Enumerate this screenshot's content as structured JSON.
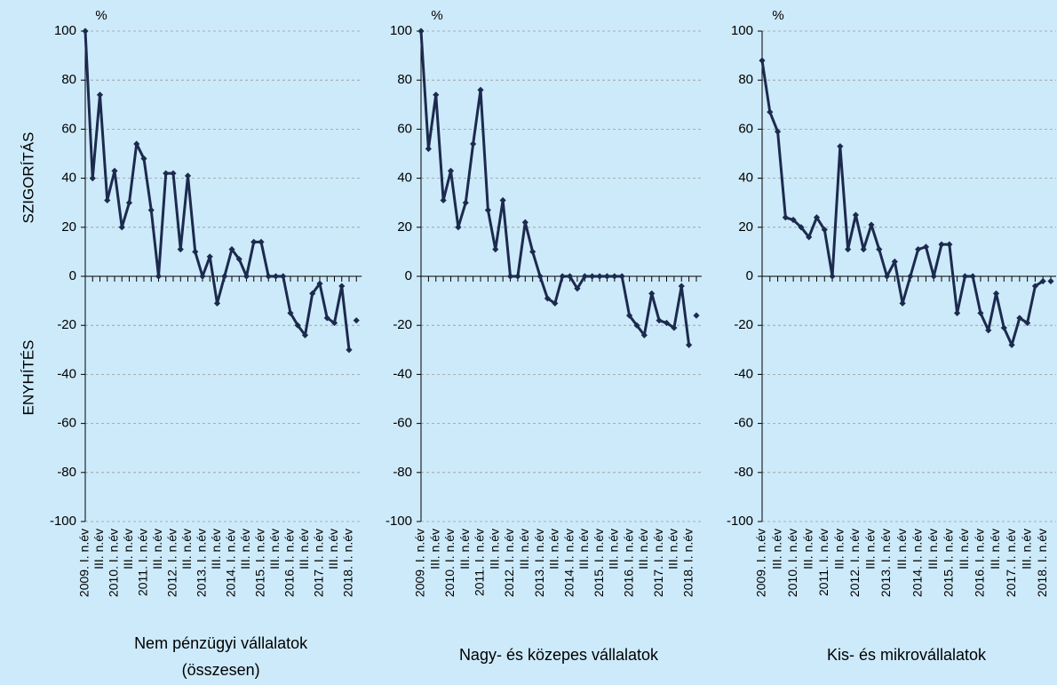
{
  "chart_data": [
    {
      "type": "line",
      "title": [
        "Nem pénzügyi vállalatok",
        "(összesen)"
      ],
      "unit": "%",
      "ylabel_upper": "SZIGORÍTÁS",
      "ylabel_lower": "ENYHÍTÉS",
      "categories": [
        "2009. I. n.év",
        null,
        "III. n.év",
        null,
        "2010. I. n.év",
        null,
        "III. n.év",
        null,
        "2011. I. n.év",
        null,
        "III. n.év",
        null,
        "2012. I. n.év",
        null,
        "III. n.év",
        null,
        "2013. I. n.év",
        null,
        "III. n.év",
        null,
        "2014. I. n.év",
        null,
        "III. n.év",
        null,
        "2015. I. n.év",
        null,
        "III. n.év",
        null,
        "2016. I. n.év",
        null,
        "III. n.év",
        null,
        "2017. I. n.év",
        null,
        "III. n.év",
        null,
        "2018. I. n.év",
        null
      ],
      "series": [
        {
          "color": "#1c2a4e",
          "values": [
            100,
            40,
            74,
            31,
            43,
            20,
            30,
            54,
            48,
            27,
            0,
            42,
            42,
            11,
            41,
            10,
            0,
            8,
            -11,
            0,
            11,
            7,
            0,
            14,
            14,
            0,
            0,
            0,
            -15,
            -20,
            -24,
            -7,
            -3,
            -17,
            -19,
            -4,
            -30,
            null
          ]
        },
        {
          "color": "#1c2a4e",
          "values": [
            null,
            null,
            null,
            null,
            null,
            null,
            null,
            null,
            null,
            null,
            null,
            null,
            null,
            null,
            null,
            null,
            null,
            null,
            null,
            null,
            null,
            null,
            null,
            null,
            null,
            null,
            null,
            null,
            null,
            null,
            null,
            null,
            null,
            null,
            null,
            null,
            null,
            -18
          ]
        }
      ],
      "ylim": [
        -100,
        100
      ],
      "yticks": [
        -100,
        -80,
        -60,
        -40,
        -20,
        0,
        20,
        40,
        60,
        80,
        100
      ],
      "grid": true
    },
    {
      "type": "line",
      "title": [
        "Nagy- és közepes vállalatok"
      ],
      "unit": "%",
      "categories": [
        "2009. I. n.év",
        null,
        "III. n.év",
        null,
        "2010. I. n.év",
        null,
        "III. n.év",
        null,
        "2011. I. n.év",
        null,
        "III. n.év",
        null,
        "2012. I. n.év",
        null,
        "III. n.év",
        null,
        "2013. I. n.év",
        null,
        "III. n.év",
        null,
        "2014. I. n.év",
        null,
        "III. n.év",
        null,
        "2015. I. n.év",
        null,
        "III. n.év",
        null,
        "2016. I. n.év",
        null,
        "III. n.év",
        null,
        "2017. I. n.év",
        null,
        "III. n.év",
        null,
        "2018. I. n.év",
        null
      ],
      "series": [
        {
          "color": "#1c2a4e",
          "values": [
            100,
            52,
            74,
            31,
            43,
            20,
            30,
            54,
            76,
            27,
            11,
            31,
            0,
            0,
            22,
            10,
            0,
            -9,
            -11,
            0,
            0,
            -5,
            0,
            0,
            0,
            0,
            0,
            0,
            -16,
            -20,
            -24,
            -7,
            -18,
            -19,
            -21,
            -4,
            -28,
            null
          ]
        },
        {
          "color": "#1c2a4e",
          "values": [
            null,
            null,
            null,
            null,
            null,
            null,
            null,
            null,
            null,
            null,
            null,
            null,
            null,
            null,
            null,
            null,
            null,
            null,
            null,
            null,
            null,
            null,
            null,
            null,
            null,
            null,
            null,
            null,
            null,
            null,
            null,
            null,
            null,
            null,
            null,
            null,
            null,
            -16
          ]
        }
      ],
      "ylim": [
        -100,
        100
      ],
      "yticks": [
        -100,
        -80,
        -60,
        -40,
        -20,
        0,
        20,
        40,
        60,
        80,
        100
      ],
      "grid": true
    },
    {
      "type": "line",
      "title": [
        "Kis- és mikrovállalatok"
      ],
      "unit": "%",
      "categories": [
        "2009. I. n.év",
        null,
        "III. n.év",
        null,
        "2010. I. n.év",
        null,
        "III. n.év",
        null,
        "2011. I. n.év",
        null,
        "III. n.év",
        null,
        "2012. I. n.év",
        null,
        "III. n.év",
        null,
        "2013. I. n.év",
        null,
        "III. n.év",
        null,
        "2014. I. n.év",
        null,
        "III. n.év",
        null,
        "2015. I. n.év",
        null,
        "III. n.év",
        null,
        "2016. I. n.év",
        null,
        "III. n.év",
        null,
        "2017. I. n.év",
        null,
        "III. n.év",
        null,
        "2018. I. n.év",
        null
      ],
      "series": [
        {
          "color": "#1c2a4e",
          "values": [
            88,
            67,
            59,
            24,
            23,
            20,
            16,
            24,
            19,
            0,
            53,
            11,
            25,
            11,
            21,
            11,
            0,
            6,
            -11,
            0,
            11,
            12,
            0,
            13,
            13,
            -15,
            0,
            0,
            -15,
            -22,
            -7,
            -21,
            -28,
            -17,
            -19,
            -4,
            -2,
            null
          ]
        },
        {
          "color": "#1c2a4e",
          "values": [
            null,
            null,
            null,
            null,
            null,
            null,
            null,
            null,
            null,
            null,
            null,
            null,
            null,
            null,
            null,
            null,
            null,
            null,
            null,
            null,
            null,
            null,
            null,
            null,
            null,
            null,
            null,
            null,
            null,
            null,
            null,
            null,
            null,
            null,
            null,
            null,
            null,
            -2
          ]
        }
      ],
      "ylim": [
        -100,
        100
      ],
      "yticks": [
        -100,
        -80,
        -60,
        -40,
        -20,
        0,
        20,
        40,
        60,
        80,
        100
      ],
      "grid": true
    }
  ]
}
